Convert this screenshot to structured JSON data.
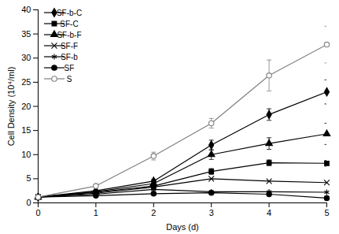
{
  "chart_data": {
    "type": "line",
    "x_label": "Days (d)",
    "y_label": "Cell Density (10⁴/ml)",
    "x": [
      0,
      1,
      2,
      3,
      4,
      5
    ],
    "xlim": [
      0,
      5
    ],
    "xticks": [
      0,
      1,
      2,
      3,
      4,
      5
    ],
    "ylim": [
      0,
      40
    ],
    "yticks": [
      0,
      5,
      10,
      15,
      20,
      25,
      30,
      35,
      40
    ],
    "grid": false,
    "legend": "top-left",
    "series": [
      {
        "name": "SF-b-C",
        "color": "#000000",
        "marker": "diamond",
        "values": [
          1.2,
          2.5,
          4.5,
          12.0,
          18.3,
          23.0
        ],
        "errors": [
          null,
          null,
          0.4,
          1.0,
          1.2,
          2.5
        ]
      },
      {
        "name": "SF-C",
        "color": "#000000",
        "marker": "square",
        "values": [
          1.2,
          2.2,
          3.5,
          6.5,
          8.3,
          8.2
        ],
        "errors": [
          null,
          null,
          null,
          0.6,
          0.6,
          0.6
        ]
      },
      {
        "name": "SF-b-F",
        "color": "#000000",
        "marker": "triangle",
        "values": [
          1.2,
          2.3,
          4.0,
          10.0,
          12.3,
          14.3
        ],
        "errors": [
          null,
          null,
          0.4,
          1.0,
          1.2,
          2.2
        ]
      },
      {
        "name": "SF-F",
        "color": "#000000",
        "marker": "x",
        "values": [
          1.2,
          2.0,
          3.3,
          5.0,
          4.5,
          4.2
        ],
        "errors": [
          null,
          null,
          null,
          null,
          null,
          null
        ]
      },
      {
        "name": "SF-b",
        "color": "#000000",
        "marker": "asterisk",
        "values": [
          1.2,
          1.8,
          2.8,
          2.3,
          2.3,
          2.2
        ],
        "errors": [
          null,
          null,
          null,
          null,
          null,
          null
        ]
      },
      {
        "name": "SF",
        "color": "#000000",
        "marker": "circle",
        "values": [
          1.2,
          1.5,
          1.9,
          2.1,
          1.8,
          1.0
        ],
        "errors": [
          null,
          null,
          null,
          null,
          null,
          0.4
        ]
      },
      {
        "name": "S",
        "color": "#808080",
        "marker": "circle-open",
        "values": [
          1.2,
          3.5,
          9.7,
          16.5,
          26.4,
          32.8
        ],
        "errors": [
          null,
          0.3,
          0.8,
          1.0,
          3.2,
          3.8
        ]
      }
    ]
  }
}
